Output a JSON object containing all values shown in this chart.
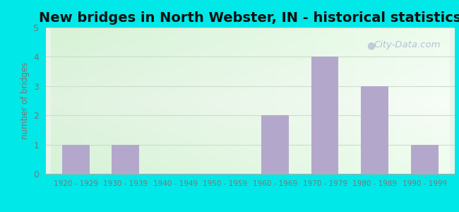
{
  "title": "New bridges in North Webster, IN - historical statistics",
  "categories": [
    "1920 - 1929",
    "1930 - 1939",
    "1940 - 1949",
    "1950 - 1959",
    "1960 - 1969",
    "1970 - 1979",
    "1980 - 1989",
    "1990 - 1999"
  ],
  "values": [
    1,
    1,
    0,
    0,
    2,
    4,
    3,
    1
  ],
  "bar_color": "#b3a8cc",
  "ylabel": "number of bridges",
  "ylim": [
    0,
    5
  ],
  "yticks": [
    0,
    1,
    2,
    3,
    4,
    5
  ],
  "bg_color_outer": "#00e8e8",
  "bg_plot_top_left": "#d8efd8",
  "bg_plot_bottom_right": "#f0f8ee",
  "title_fontsize": 14,
  "watermark_text": "City-Data.com",
  "watermark_color": "#aabccc",
  "tick_label_color": "#777777",
  "grid_color": "#ccddcc"
}
